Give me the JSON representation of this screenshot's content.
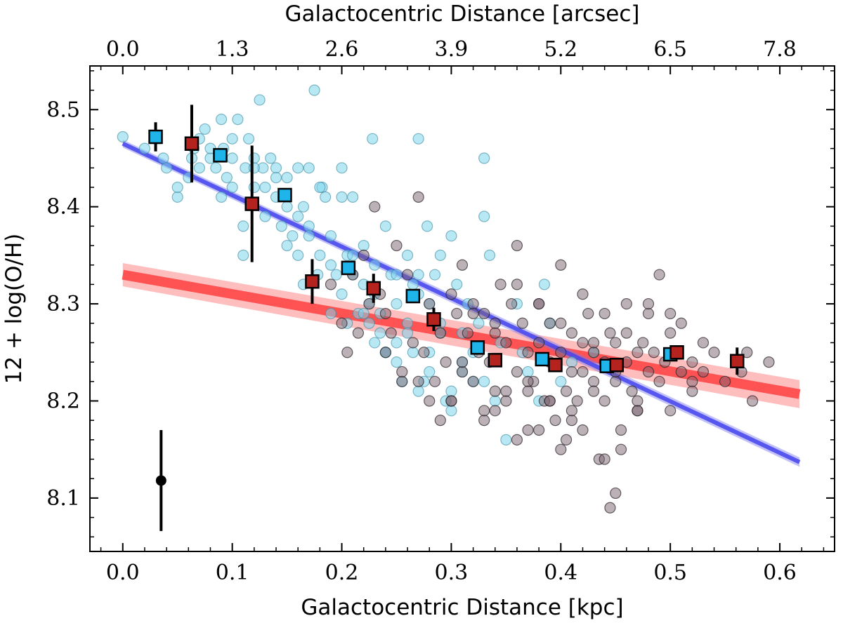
{
  "chart_data": {
    "type": "scatter",
    "xlabel": "Galactocentric Distance [kpc]",
    "ylabel": "12 + log(O/H)",
    "top_xlabel": "Galactocentric Distance [arcsec]",
    "xlim": [
      -0.03,
      0.65
    ],
    "ylim": [
      8.045,
      8.545
    ],
    "x_ticks": [
      "0.0",
      "0.1",
      "0.2",
      "0.3",
      "0.4",
      "0.5",
      "0.6"
    ],
    "x_tick_values": [
      0.0,
      0.1,
      0.2,
      0.3,
      0.4,
      0.5,
      0.6
    ],
    "y_ticks": [
      "8.1",
      "8.2",
      "8.3",
      "8.4",
      "8.5"
    ],
    "y_tick_values": [
      8.1,
      8.2,
      8.3,
      8.4,
      8.5
    ],
    "top_x_ticks": [
      "0.0",
      "1.3",
      "2.6",
      "3.9",
      "5.2",
      "6.5",
      "7.8"
    ],
    "top_x_tick_values": [
      0.0,
      0.1,
      0.2,
      0.3,
      0.4,
      0.5,
      0.6
    ],
    "colors": {
      "cyan_points": "#7fd6ec",
      "dark_points": "#7a6470",
      "cyan_bins": "#1fb4ea",
      "red_bins": "#b5231f",
      "blue_fit": "#4444ee",
      "red_fit": "#ff4040"
    },
    "fits": [
      {
        "name": "blue-gradient",
        "x": [
          0.0,
          0.618
        ],
        "y": [
          8.465,
          8.137
        ],
        "band": 0.004
      },
      {
        "name": "red-gradient",
        "x": [
          0.0,
          0.618
        ],
        "y": [
          8.33,
          8.207
        ],
        "band": 0.012
      }
    ],
    "binned_cyan": {
      "x": [
        0.03,
        0.089,
        0.148,
        0.206,
        0.265,
        0.324,
        0.383,
        0.442,
        0.5
      ],
      "y": [
        8.472,
        8.453,
        8.412,
        8.337,
        8.308,
        8.255,
        8.243,
        8.236,
        8.248
      ],
      "err": [
        0.015,
        0.0,
        0.0,
        0.0,
        0.0,
        0.0,
        0.0,
        0.0,
        0.0
      ]
    },
    "binned_red": {
      "x": [
        0.063,
        0.118,
        0.173,
        0.229,
        0.284,
        0.34,
        0.395,
        0.451,
        0.506,
        0.561
      ],
      "y": [
        8.465,
        8.403,
        8.323,
        8.316,
        8.284,
        8.242,
        8.237,
        8.237,
        8.25,
        8.241
      ],
      "err": [
        0.04,
        0.06,
        0.023,
        0.015,
        0.012,
        0.005,
        0.005,
        0.005,
        0.007,
        0.014
      ]
    },
    "typical_error": {
      "x": 0.035,
      "y": 8.118,
      "err": 0.052
    },
    "scatter_cyan": {
      "x": [
        0.0,
        0.02,
        0.03,
        0.037,
        0.04,
        0.05,
        0.06,
        0.063,
        0.065,
        0.07,
        0.075,
        0.08,
        0.085,
        0.09,
        0.092,
        0.095,
        0.1,
        0.1,
        0.105,
        0.11,
        0.112,
        0.115,
        0.12,
        0.12,
        0.125,
        0.128,
        0.13,
        0.135,
        0.14,
        0.14,
        0.145,
        0.15,
        0.15,
        0.155,
        0.16,
        0.16,
        0.165,
        0.165,
        0.17,
        0.17,
        0.175,
        0.178,
        0.18,
        0.182,
        0.185,
        0.19,
        0.19,
        0.195,
        0.2,
        0.2,
        0.205,
        0.205,
        0.21,
        0.21,
        0.215,
        0.22,
        0.22,
        0.225,
        0.225,
        0.228,
        0.23,
        0.235,
        0.235,
        0.24,
        0.24,
        0.245,
        0.25,
        0.25,
        0.255,
        0.26,
        0.26,
        0.265,
        0.265,
        0.27,
        0.27,
        0.275,
        0.278,
        0.28,
        0.28,
        0.285,
        0.29,
        0.29,
        0.295,
        0.3,
        0.3,
        0.305,
        0.31,
        0.31,
        0.315,
        0.32,
        0.32,
        0.325,
        0.33,
        0.33,
        0.335,
        0.34,
        0.345,
        0.35,
        0.36,
        0.365,
        0.37,
        0.38,
        0.385,
        0.39,
        0.4,
        0.41,
        0.43,
        0.05,
        0.07,
        0.09,
        0.11,
        0.13,
        0.15,
        0.17,
        0.19,
        0.21,
        0.23,
        0.25,
        0.27,
        0.29,
        0.31,
        0.33,
        0.22,
        0.24,
        0.26,
        0.28,
        0.3,
        0.2,
        0.18,
        0.16,
        0.14,
        0.12,
        0.1,
        0.08,
        0.23,
        0.25,
        0.27
      ],
      "y": [
        8.472,
        8.46,
        8.47,
        8.45,
        8.44,
        8.41,
        8.43,
        8.45,
        8.46,
        8.47,
        8.48,
        8.45,
        8.44,
        8.49,
        8.46,
        8.43,
        8.42,
        8.45,
        8.49,
        8.35,
        8.44,
        8.47,
        8.45,
        8.42,
        8.51,
        8.44,
        8.42,
        8.45,
        8.41,
        8.44,
        8.38,
        8.43,
        8.4,
        8.37,
        8.44,
        8.35,
        8.4,
        8.32,
        8.44,
        8.38,
        8.52,
        8.33,
        8.35,
        8.42,
        8.41,
        8.29,
        8.37,
        8.33,
        8.44,
        8.31,
        8.35,
        8.28,
        8.41,
        8.33,
        8.29,
        8.36,
        8.32,
        8.3,
        8.28,
        8.47,
        8.34,
        8.29,
        8.27,
        8.38,
        8.25,
        8.33,
        8.3,
        8.26,
        8.22,
        8.35,
        8.28,
        8.32,
        8.25,
        8.33,
        8.47,
        8.22,
        8.38,
        8.3,
        8.25,
        8.33,
        8.35,
        8.28,
        8.2,
        8.37,
        8.19,
        8.32,
        8.27,
        8.23,
        8.3,
        8.22,
        8.25,
        8.28,
        8.39,
        8.45,
        8.35,
        8.2,
        8.26,
        8.16,
        8.3,
        8.25,
        8.23,
        8.2,
        8.32,
        8.28,
        8.22,
        8.24,
        8.25,
        8.42,
        8.44,
        8.41,
        8.38,
        8.39,
        8.36,
        8.37,
        8.34,
        8.35,
        8.31,
        8.33,
        8.31,
        8.27,
        8.24,
        8.22,
        8.29,
        8.25,
        8.27,
        8.23,
        8.21,
        8.41,
        8.42,
        8.39,
        8.43,
        8.44,
        8.47,
        8.46,
        8.26,
        8.24,
        8.21
      ]
    },
    "scatter_dark": {
      "x": [
        0.19,
        0.2,
        0.21,
        0.22,
        0.225,
        0.23,
        0.235,
        0.24,
        0.245,
        0.25,
        0.255,
        0.26,
        0.265,
        0.27,
        0.275,
        0.28,
        0.285,
        0.29,
        0.295,
        0.3,
        0.3,
        0.305,
        0.31,
        0.31,
        0.315,
        0.32,
        0.32,
        0.325,
        0.33,
        0.33,
        0.335,
        0.34,
        0.34,
        0.345,
        0.35,
        0.35,
        0.355,
        0.36,
        0.36,
        0.365,
        0.37,
        0.37,
        0.375,
        0.38,
        0.38,
        0.385,
        0.39,
        0.39,
        0.395,
        0.4,
        0.4,
        0.405,
        0.41,
        0.41,
        0.415,
        0.42,
        0.42,
        0.425,
        0.43,
        0.43,
        0.435,
        0.44,
        0.44,
        0.445,
        0.45,
        0.45,
        0.455,
        0.46,
        0.46,
        0.465,
        0.47,
        0.47,
        0.475,
        0.48,
        0.48,
        0.485,
        0.49,
        0.49,
        0.495,
        0.5,
        0.5,
        0.505,
        0.51,
        0.51,
        0.52,
        0.52,
        0.53,
        0.53,
        0.54,
        0.55,
        0.56,
        0.565,
        0.57,
        0.575,
        0.59,
        0.28,
        0.29,
        0.31,
        0.33,
        0.35,
        0.37,
        0.39,
        0.41,
        0.43,
        0.45,
        0.47,
        0.36,
        0.38,
        0.4,
        0.42,
        0.44,
        0.46,
        0.32,
        0.34,
        0.48,
        0.5,
        0.36,
        0.4,
        0.44,
        0.445,
        0.45,
        0.455,
        0.405,
        0.38,
        0.34,
        0.3,
        0.27,
        0.255,
        0.24,
        0.215,
        0.205,
        0.47,
        0.52,
        0.42,
        0.43,
        0.37,
        0.39,
        0.41
      ],
      "y": [
        8.32,
        8.28,
        8.33,
        8.35,
        8.3,
        8.4,
        8.31,
        8.29,
        8.27,
        8.36,
        8.22,
        8.33,
        8.26,
        8.41,
        8.25,
        8.3,
        8.22,
        8.27,
        8.24,
        8.31,
        8.2,
        8.29,
        8.23,
        8.34,
        8.27,
        8.22,
        8.3,
        8.25,
        8.18,
        8.29,
        8.24,
        8.27,
        8.21,
        8.32,
        8.26,
        8.2,
        8.3,
        8.23,
        8.36,
        8.28,
        8.25,
        8.17,
        8.22,
        8.3,
        8.26,
        8.2,
        8.24,
        8.28,
        8.18,
        8.25,
        8.34,
        8.21,
        8.27,
        8.23,
        8.2,
        8.26,
        8.17,
        8.29,
        8.22,
        8.25,
        8.14,
        8.24,
        8.2,
        8.27,
        8.22,
        8.26,
        8.17,
        8.24,
        8.3,
        8.21,
        8.25,
        8.19,
        8.26,
        8.23,
        8.29,
        8.25,
        8.22,
        8.33,
        8.24,
        8.27,
        8.19,
        8.25,
        8.23,
        8.28,
        8.24,
        8.21,
        8.26,
        8.23,
        8.25,
        8.22,
        8.24,
        8.23,
        8.25,
        8.2,
        8.24,
        8.2,
        8.18,
        8.24,
        8.19,
        8.21,
        8.22,
        8.2,
        8.18,
        8.21,
        8.23,
        8.19,
        8.32,
        8.3,
        8.28,
        8.31,
        8.29,
        8.27,
        8.29,
        8.28,
        8.3,
        8.29,
        8.16,
        8.15,
        8.14,
        8.09,
        8.105,
        8.15,
        8.16,
        8.17,
        8.19,
        8.2,
        8.22,
        8.23,
        8.25,
        8.27,
        8.25,
        8.2,
        8.22,
        8.23,
        8.26,
        8.21,
        8.2,
        8.19
      ]
    }
  }
}
